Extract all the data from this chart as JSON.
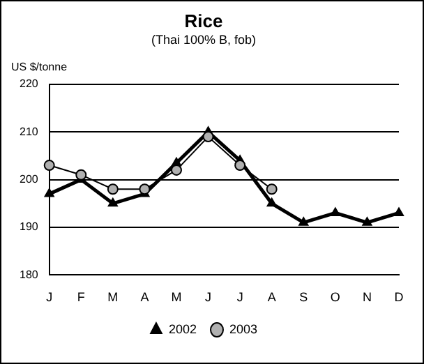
{
  "chart_data": {
    "type": "line",
    "title": "Rice",
    "subtitle": "(Thai 100% B, fob)",
    "ylabel": "US $/tonne",
    "categories": [
      "J",
      "F",
      "M",
      "A",
      "M",
      "J",
      "J",
      "A",
      "S",
      "O",
      "N",
      "D"
    ],
    "series": [
      {
        "name": "2002",
        "color": "#000000",
        "marker": "triangle",
        "values": [
          197,
          200,
          195,
          197,
          203.5,
          210,
          204,
          195,
          191,
          193,
          191,
          193
        ]
      },
      {
        "name": "2003",
        "color": "#000000",
        "marker": "circle",
        "values": [
          203,
          201,
          198,
          198,
          202,
          209,
          203,
          198,
          null,
          null,
          null,
          null
        ]
      }
    ],
    "ylim": [
      180,
      220
    ],
    "yticks": [
      180,
      190,
      200,
      210,
      220
    ],
    "grid": "y",
    "legend": "bottom"
  }
}
